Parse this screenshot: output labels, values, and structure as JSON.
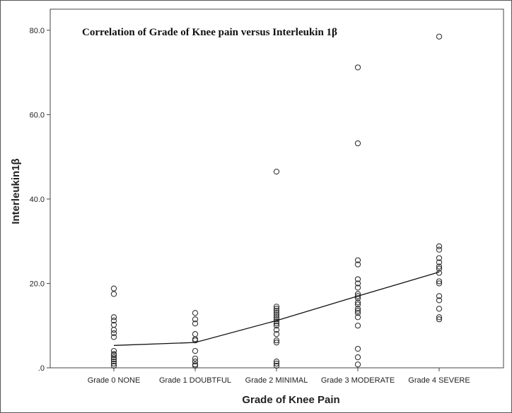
{
  "chart_data": {
    "type": "scatter",
    "title": "Correlation of Grade of Knee pain versus Interleukin 1β",
    "xlabel": "Grade of Knee Pain",
    "ylabel": "Interleukin1β",
    "categories": [
      "Grade 0 NONE",
      "Grade 1 DOUBTFUL",
      "Grade 2 MINIMAL",
      "Grade 3 MODERATE",
      "Grade 4 SEVERE"
    ],
    "ylim": [
      0,
      85
    ],
    "yticks": [
      0,
      20,
      40,
      60,
      80
    ],
    "ytick_labels": [
      ".0",
      "20.0",
      "40.0",
      "60.0",
      "80.0"
    ],
    "grid": false,
    "points": [
      [
        18.8,
        17.5,
        12.0,
        11.2,
        10.2,
        9.0,
        8.2,
        7.3,
        4.0,
        3.3,
        3.0,
        2.5,
        2.0,
        1.5,
        1.0,
        0.5
      ],
      [
        13.0,
        11.5,
        10.5,
        8.0,
        6.8,
        6.5,
        4.0,
        2.2,
        1.5,
        0.8,
        0.5
      ],
      [
        46.5,
        14.5,
        14.0,
        13.5,
        13.0,
        12.5,
        12.0,
        11.5,
        11.0,
        10.5,
        10.0,
        9.0,
        8.0,
        6.5,
        6.0,
        1.5,
        1.0,
        0.5
      ],
      [
        71.2,
        53.2,
        25.5,
        24.5,
        21.0,
        20.0,
        19.0,
        17.5,
        17.0,
        16.5,
        15.5,
        15.0,
        14.0,
        13.5,
        13.0,
        12.0,
        10.0,
        4.5,
        2.5,
        0.8
      ],
      [
        78.5,
        28.8,
        28.0,
        26.0,
        25.0,
        24.0,
        23.5,
        22.5,
        20.5,
        20.0,
        17.0,
        16.0,
        14.0,
        12.0,
        11.5
      ]
    ],
    "mean_line": [
      5.3,
      6.0,
      11.2,
      17.0,
      22.7
    ],
    "marker_color": "#333333",
    "line_color": "#111111"
  }
}
